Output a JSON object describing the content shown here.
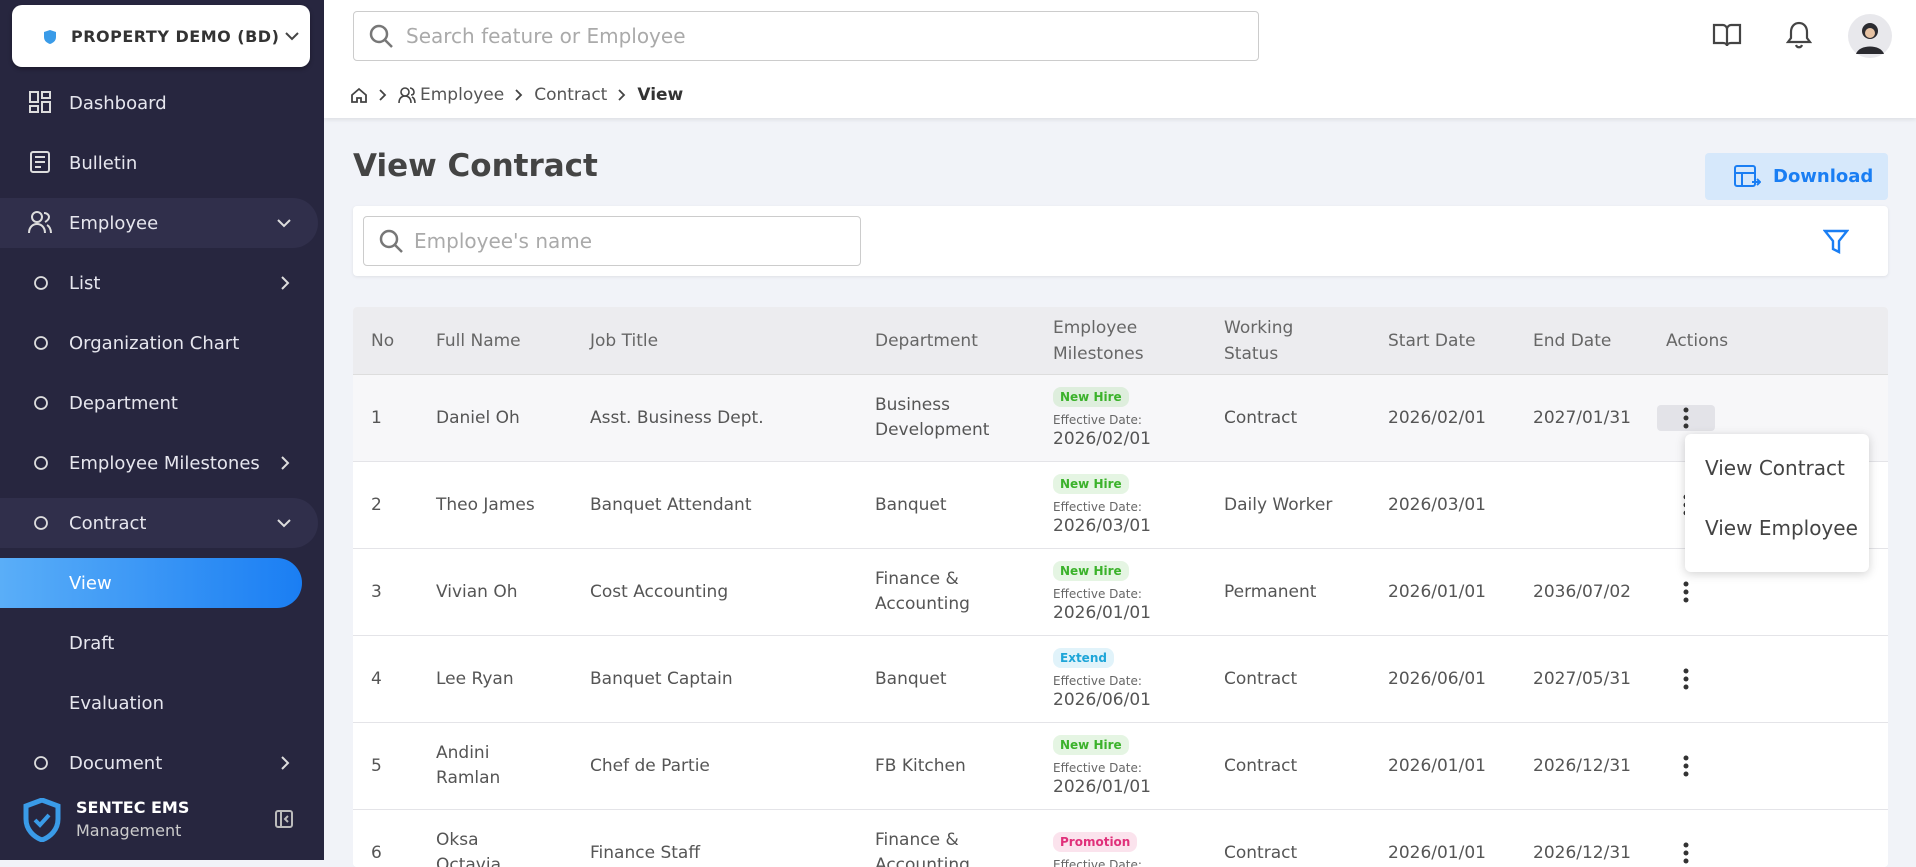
{
  "sidebar": {
    "company": "PROPERTY DEMO (BD)",
    "menu": [
      "Dashboard",
      "Bulletin",
      "Employee",
      "List",
      "Organization Chart",
      "Department",
      "Employee Milestones",
      "Contract",
      "View",
      "Draft",
      "Evaluation",
      "Document"
    ],
    "footer": {
      "title": "SENTEC EMS",
      "subtitle": "Management"
    }
  },
  "header": {
    "search_placeholder": "Search feature or Employee",
    "breadcrumb": [
      "Employee",
      "Contract",
      "View"
    ]
  },
  "page": {
    "title": "View Contract",
    "download": "Download",
    "search_placeholder": "Employee's name"
  },
  "table": {
    "columns": [
      "No",
      "Full Name",
      "Job Title",
      "Department",
      "Employee Milestones",
      "Working Status",
      "Start Date",
      "End Date",
      "Actions"
    ],
    "rows": [
      {
        "no": 1,
        "name": "Daniel Oh",
        "job": "Asst. Business Dept.",
        "department": "Business Development",
        "milestone": "New Hire",
        "milestone_color": "#3bb22b",
        "effective_label": "Effective Date:",
        "effective_date": "2026/02/01",
        "status": "Contract",
        "start": "2026/02/01",
        "end": "2027/01/31"
      },
      {
        "no": 2,
        "name": "Theo James",
        "job": "Banquet Attendant",
        "department": "Banquet",
        "milestone": "New Hire",
        "milestone_color": "#3bb22b",
        "effective_label": "Effective Date:",
        "effective_date": "2026/03/01",
        "status": "Daily Worker",
        "start": "2026/03/01",
        "end": null
      },
      {
        "no": 3,
        "name": "Vivian Oh",
        "job": "Cost Accounting",
        "department": "Finance & Accounting",
        "milestone": "New Hire",
        "milestone_color": "#3bb22b",
        "effective_label": "Effective Date:",
        "effective_date": "2026/01/01",
        "status": "Permanent",
        "start": "2026/01/01",
        "end": "2036/07/02"
      },
      {
        "no": 4,
        "name": "Lee Ryan",
        "job": "Banquet Captain",
        "department": "Banquet",
        "milestone": "Extend",
        "milestone_color": "#1ea5d8",
        "effective_label": "Effective Date:",
        "effective_date": "2026/06/01",
        "status": "Contract",
        "start": "2026/06/01",
        "end": "2027/05/31"
      },
      {
        "no": 5,
        "name": "Andini Ramlan",
        "job": "Chef de Partie",
        "department": "FB Kitchen",
        "milestone": "New Hire",
        "milestone_color": "#3bb22b",
        "effective_label": "Effective Date:",
        "effective_date": "2026/01/01",
        "status": "Contract",
        "start": "2026/01/01",
        "end": "2026/12/31"
      },
      {
        "no": 6,
        "name": "Oksa Octavia",
        "job": "Finance Staff",
        "department": "Finance & Accounting",
        "milestone": "Promotion",
        "milestone_color": "#e0307a",
        "effective_label": "Effective Date:",
        "effective_date": null,
        "status": "Contract",
        "start": "2026/01/01",
        "end": "2026/12/31"
      }
    ]
  },
  "dropdown": [
    "View Contract",
    "View Employee"
  ]
}
